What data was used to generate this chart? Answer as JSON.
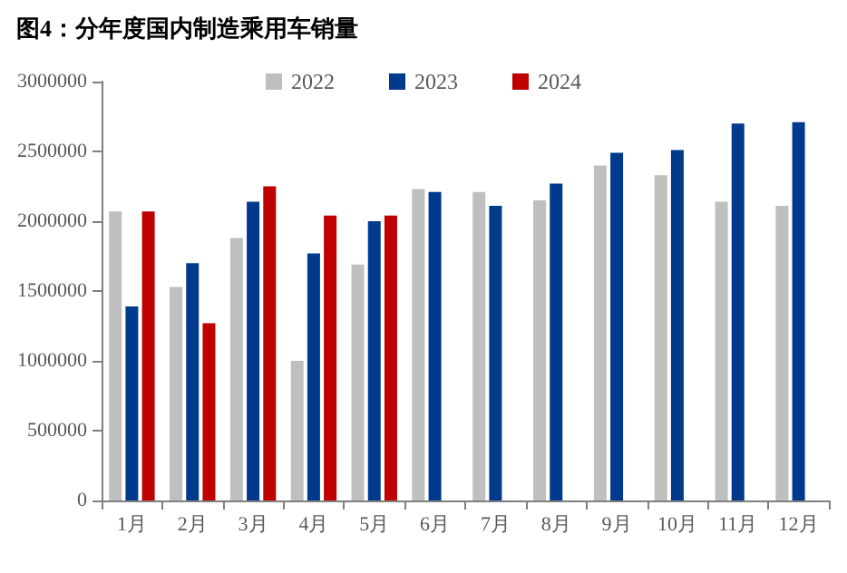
{
  "chart_data": {
    "type": "bar",
    "title": "图4：分年度国内制造乘用车销量",
    "categories": [
      "1月",
      "2月",
      "3月",
      "4月",
      "5月",
      "6月",
      "7月",
      "8月",
      "9月",
      "10月",
      "11月",
      "12月"
    ],
    "series": [
      {
        "name": "2022",
        "color": "#bfbfbf",
        "values": [
          2070000,
          1530000,
          1880000,
          1000000,
          1690000,
          2230000,
          2210000,
          2150000,
          2400000,
          2330000,
          2140000,
          2110000
        ]
      },
      {
        "name": "2023",
        "color": "#003a8c",
        "values": [
          1390000,
          1700000,
          2140000,
          1770000,
          2000000,
          2210000,
          2110000,
          2270000,
          2490000,
          2510000,
          2700000,
          2710000
        ]
      },
      {
        "name": "2024",
        "color": "#c00000",
        "values": [
          2070000,
          1270000,
          2250000,
          2040000,
          2040000,
          null,
          null,
          null,
          null,
          null,
          null,
          null
        ]
      }
    ],
    "ylim": [
      0,
      3000000
    ],
    "yticks": [
      0,
      500000,
      1000000,
      1500000,
      2000000,
      2500000,
      3000000
    ],
    "grid": false,
    "legend": "top"
  }
}
